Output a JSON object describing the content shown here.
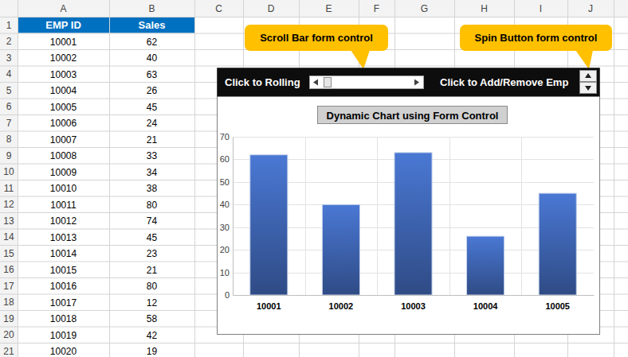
{
  "spreadsheet": {
    "columns": [
      "A",
      "B",
      "C",
      "D",
      "E",
      "F",
      "G",
      "H",
      "I",
      "J"
    ],
    "row_numbers": [
      1,
      2,
      3,
      4,
      5,
      6,
      7,
      8,
      9,
      10,
      11,
      12,
      13,
      14,
      15,
      16,
      17,
      18,
      19,
      20,
      21
    ],
    "header": [
      "EMP ID",
      "Sales"
    ],
    "rows": [
      [
        10001,
        62
      ],
      [
        10002,
        40
      ],
      [
        10003,
        63
      ],
      [
        10004,
        26
      ],
      [
        10005,
        45
      ],
      [
        10006,
        24
      ],
      [
        10007,
        21
      ],
      [
        10008,
        33
      ],
      [
        10009,
        34
      ],
      [
        10010,
        38
      ],
      [
        10011,
        80
      ],
      [
        10012,
        74
      ],
      [
        10013,
        45
      ],
      [
        10014,
        23
      ],
      [
        10015,
        21
      ],
      [
        10016,
        80
      ],
      [
        10017,
        12
      ],
      [
        10018,
        58
      ],
      [
        10019,
        42
      ],
      [
        10020,
        19
      ]
    ]
  },
  "callouts": [
    "Scroll Bar form control",
    "Spin Button form control"
  ],
  "controls": {
    "scroll_label": "Click to Rolling",
    "spin_label": "Click to Add/Remove Emp"
  },
  "chart_data": {
    "type": "bar",
    "title": "Dynamic Chart using Form Control",
    "categories": [
      "10001",
      "10002",
      "10003",
      "10004",
      "10005"
    ],
    "values": [
      62,
      40,
      63,
      26,
      45
    ],
    "color": "#4a78d4",
    "ylim": [
      0,
      70
    ],
    "yticks": [
      0,
      10,
      20,
      30,
      40,
      50,
      60,
      70
    ],
    "grid": true
  }
}
